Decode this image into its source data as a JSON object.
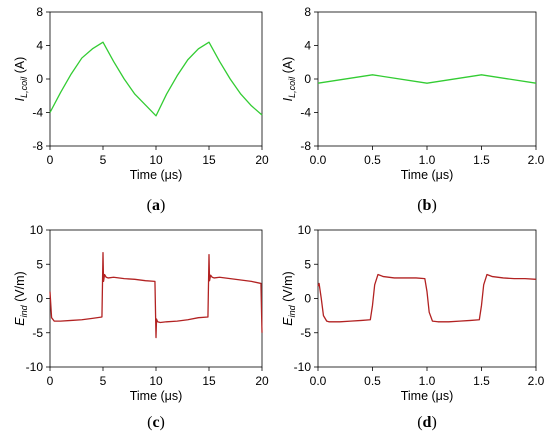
{
  "chart_data": [
    {
      "type": "line",
      "panel_label": "a",
      "xlabel": "Time (μs)",
      "ylabel_main": "I",
      "ylabel_sub": "L,coil",
      "ylabel_unit": " (A)",
      "xlim": [
        0,
        20
      ],
      "ylim": [
        -8,
        8
      ],
      "xticks": [
        0,
        5,
        10,
        15,
        20
      ],
      "yticks": [
        -8,
        -4,
        0,
        4,
        8
      ],
      "grid": false,
      "series": [
        {
          "color": "#33cc33",
          "x": [
            0,
            1,
            2,
            3,
            4,
            5,
            6,
            7,
            8,
            9,
            10,
            11,
            12,
            13,
            14,
            15,
            16,
            17,
            18,
            19,
            20
          ],
          "y": [
            -4.0,
            -1.6,
            0.6,
            2.5,
            3.6,
            4.4,
            2.1,
            0.0,
            -1.8,
            -3.1,
            -4.4,
            -1.8,
            0.4,
            2.3,
            3.6,
            4.4,
            2.1,
            0.0,
            -1.8,
            -3.2,
            -4.3
          ]
        }
      ]
    },
    {
      "type": "line",
      "panel_label": "b",
      "xlabel": "Time (μs)",
      "ylabel_main": "I",
      "ylabel_sub": "L,coil",
      "ylabel_unit": " (A)",
      "xlim": [
        0,
        2
      ],
      "ylim": [
        -8,
        8
      ],
      "xticks": [
        0.0,
        0.5,
        1.0,
        1.5,
        2.0
      ],
      "xtick_labels": [
        "0.0",
        "0.5",
        "1.0",
        "1.5",
        "2.0"
      ],
      "yticks": [
        -8,
        -4,
        0,
        4,
        8
      ],
      "grid": false,
      "series": [
        {
          "color": "#33cc33",
          "x": [
            0,
            0.5,
            1.0,
            1.5,
            2.0
          ],
          "y": [
            -0.5,
            0.5,
            -0.5,
            0.5,
            -0.5
          ]
        }
      ]
    },
    {
      "type": "line",
      "panel_label": "c",
      "xlabel": "Time (μs)",
      "ylabel_main": "E",
      "ylabel_sub": "ind",
      "ylabel_unit": " (V/m)",
      "xlim": [
        0,
        20
      ],
      "ylim": [
        -10,
        10
      ],
      "xticks": [
        0,
        5,
        10,
        15,
        20
      ],
      "yticks": [
        -10,
        -5,
        0,
        5,
        10
      ],
      "grid": false,
      "series": [
        {
          "color": "#b22222",
          "x": [
            0,
            0.15,
            0.4,
            1,
            2,
            3,
            4,
            4.9,
            5.0,
            5.05,
            5.15,
            5.3,
            5.5,
            6,
            7,
            8,
            9,
            9.9,
            10.0,
            10.05,
            10.15,
            10.4,
            11,
            12,
            13,
            14,
            14.9,
            15.0,
            15.05,
            15.15,
            15.3,
            15.5,
            16,
            17,
            18,
            19,
            19.9,
            20.0
          ],
          "y": [
            1.0,
            -2.8,
            -3.3,
            -3.3,
            -3.2,
            -3.1,
            -2.9,
            -2.7,
            6.7,
            2.5,
            3.5,
            3.1,
            3.0,
            3.1,
            2.9,
            2.8,
            2.6,
            2.5,
            -5.7,
            -3.0,
            -3.4,
            -3.5,
            -3.4,
            -3.3,
            -3.1,
            -2.8,
            -2.7,
            6.4,
            2.6,
            3.4,
            3.1,
            3.0,
            3.1,
            2.9,
            2.7,
            2.5,
            2.2,
            -5.0
          ]
        }
      ]
    },
    {
      "type": "line",
      "panel_label": "d",
      "xlabel": "Time (μs)",
      "ylabel_main": "E",
      "ylabel_sub": "ind",
      "ylabel_unit": " (V/m)",
      "xlim": [
        0,
        2
      ],
      "ylim": [
        -10,
        10
      ],
      "xticks": [
        0.0,
        0.5,
        1.0,
        1.5,
        2.0
      ],
      "xtick_labels": [
        "0.0",
        "0.5",
        "1.0",
        "1.5",
        "2.0"
      ],
      "yticks": [
        -10,
        -5,
        0,
        5,
        10
      ],
      "grid": false,
      "series": [
        {
          "color": "#b22222",
          "x": [
            0,
            0.01,
            0.03,
            0.05,
            0.08,
            0.1,
            0.2,
            0.3,
            0.4,
            0.48,
            0.5,
            0.52,
            0.55,
            0.6,
            0.7,
            0.8,
            0.9,
            0.98,
            1.0,
            1.02,
            1.05,
            1.1,
            1.2,
            1.3,
            1.4,
            1.48,
            1.5,
            1.52,
            1.55,
            1.6,
            1.7,
            1.8,
            1.9,
            2.0
          ],
          "y": [
            1.8,
            2.2,
            0.0,
            -2.5,
            -3.3,
            -3.4,
            -3.4,
            -3.3,
            -3.2,
            -3.1,
            -1.0,
            2.0,
            3.5,
            3.2,
            3.0,
            3.0,
            3.0,
            2.9,
            1.0,
            -2.0,
            -3.3,
            -3.4,
            -3.4,
            -3.3,
            -3.2,
            -3.1,
            -1.0,
            2.0,
            3.5,
            3.2,
            3.0,
            2.9,
            2.9,
            2.8
          ]
        }
      ]
    }
  ]
}
